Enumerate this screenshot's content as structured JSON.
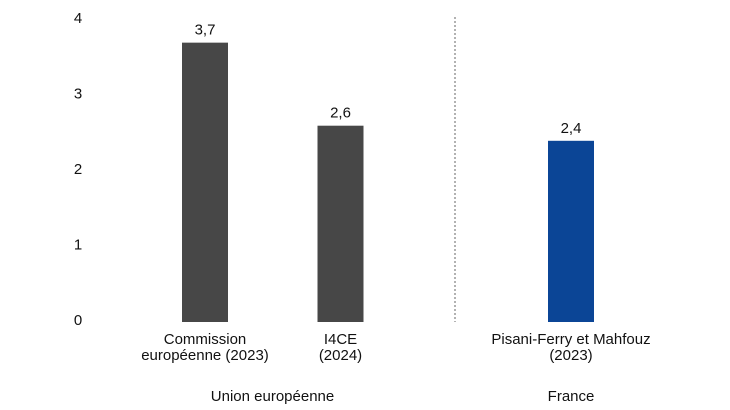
{
  "chart_data": {
    "type": "bar",
    "categories": [
      "Commission européenne (2023)",
      "I4CE (2024)",
      "Pisani-Ferry et Mahfouz (2023)"
    ],
    "category_lines": [
      [
        "Commission",
        "européenne (2023)"
      ],
      [
        "I4CE",
        "(2024)"
      ],
      [
        "Pisani-Ferry et Mahfouz",
        "(2023)"
      ]
    ],
    "values": [
      3.7,
      2.6,
      2.4
    ],
    "data_labels": [
      "3,7",
      "2,6",
      "2,4"
    ],
    "groups": [
      {
        "label": "Union européenne",
        "members": [
          0,
          1
        ]
      },
      {
        "label": "France",
        "members": [
          2
        ]
      }
    ],
    "bar_colors": [
      "#474747",
      "#474747",
      "#0b4596"
    ],
    "ylim": [
      0,
      4
    ],
    "yticks": [
      0,
      1,
      2,
      3,
      4
    ],
    "grid": false,
    "group_separator": "dashed"
  }
}
